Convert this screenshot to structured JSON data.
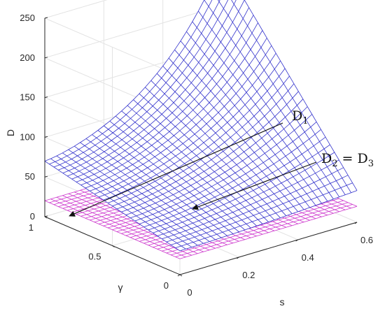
{
  "chart_data": {
    "type": "surface",
    "zlabel": "D",
    "xlabel": "s",
    "ylabel": "γ",
    "xlim": [
      0,
      0.6
    ],
    "ylim": [
      0,
      1
    ],
    "zlim": [
      0,
      250
    ],
    "x_ticks": [
      "0",
      "0.2",
      "0.4",
      "0.6"
    ],
    "y_ticks": [
      "0",
      "0.5",
      "1"
    ],
    "z_ticks": [
      "0",
      "50",
      "100",
      "150",
      "200",
      "250"
    ],
    "grid": true,
    "mesh_resolution": 30,
    "series": [
      {
        "name": "D1",
        "color": "#3333cc",
        "corner_values": {
          "s0_g0": 30,
          "s0.6_g0": 40,
          "s0_g1": 70,
          "s0.6_g1": 255
        }
      },
      {
        "name": "D2 = D3",
        "color": "#cc33cc",
        "constant_value": 20
      }
    ],
    "annotations": [
      {
        "main": "D",
        "sub": "1",
        "rest": "",
        "target_series": "D1"
      },
      {
        "main": "D",
        "sub": "2",
        "rest": " = D",
        "sub2": "3",
        "target_series": "D2 = D3"
      }
    ]
  }
}
